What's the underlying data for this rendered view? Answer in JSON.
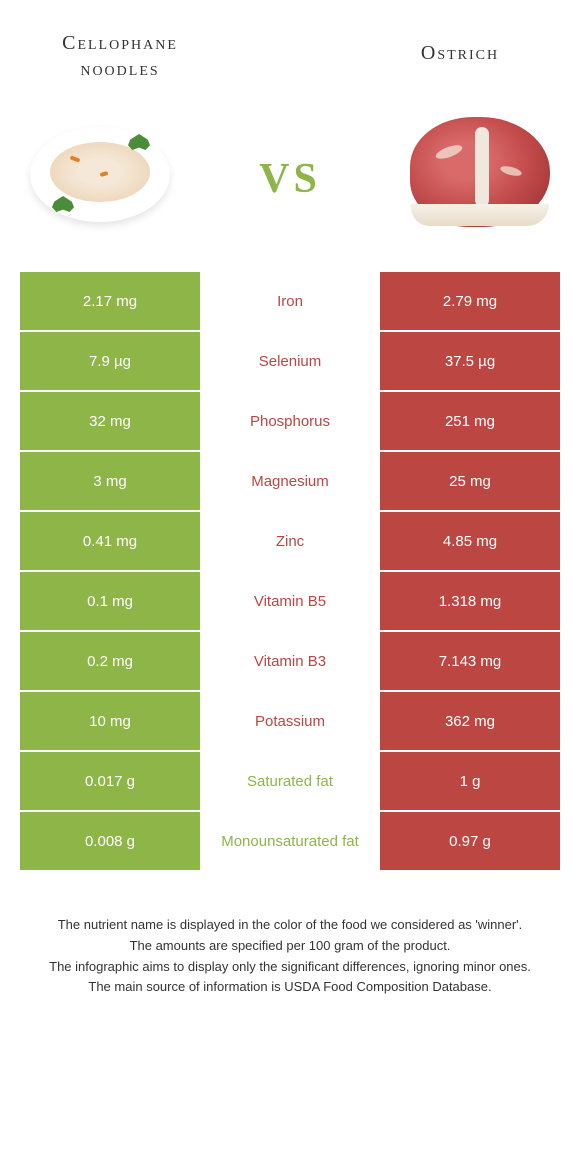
{
  "title_left": "Cellophane noodles",
  "title_right": "Ostrich",
  "vs_label": "vs",
  "colors": {
    "left_bg": "#8eb548",
    "right_bg": "#bc4641",
    "left_text": "#8eb548",
    "right_text": "#bc4641",
    "vs_text": "#8eb548"
  },
  "rows": [
    {
      "left": "2.17 mg",
      "label": "Iron",
      "right": "2.79 mg",
      "winner": "right"
    },
    {
      "left": "7.9 µg",
      "label": "Selenium",
      "right": "37.5 µg",
      "winner": "right"
    },
    {
      "left": "32 mg",
      "label": "Phosphorus",
      "right": "251 mg",
      "winner": "right"
    },
    {
      "left": "3 mg",
      "label": "Magnesium",
      "right": "25 mg",
      "winner": "right"
    },
    {
      "left": "0.41 mg",
      "label": "Zinc",
      "right": "4.85 mg",
      "winner": "right"
    },
    {
      "left": "0.1 mg",
      "label": "Vitamin B5",
      "right": "1.318 mg",
      "winner": "right"
    },
    {
      "left": "0.2 mg",
      "label": "Vitamin B3",
      "right": "7.143 mg",
      "winner": "right"
    },
    {
      "left": "10 mg",
      "label": "Potassium",
      "right": "362 mg",
      "winner": "right"
    },
    {
      "left": "0.017 g",
      "label": "Saturated fat",
      "right": "1 g",
      "winner": "left"
    },
    {
      "left": "0.008 g",
      "label": "Monounsaturated fat",
      "right": "0.97 g",
      "winner": "left"
    }
  ],
  "footer": [
    "The nutrient name is displayed in the color of the food we considered as 'winner'.",
    "The amounts are specified per 100 gram of the product.",
    "The infographic aims to display only the significant differences, ignoring minor ones.",
    "The main source of information is USDA Food Composition Database."
  ]
}
